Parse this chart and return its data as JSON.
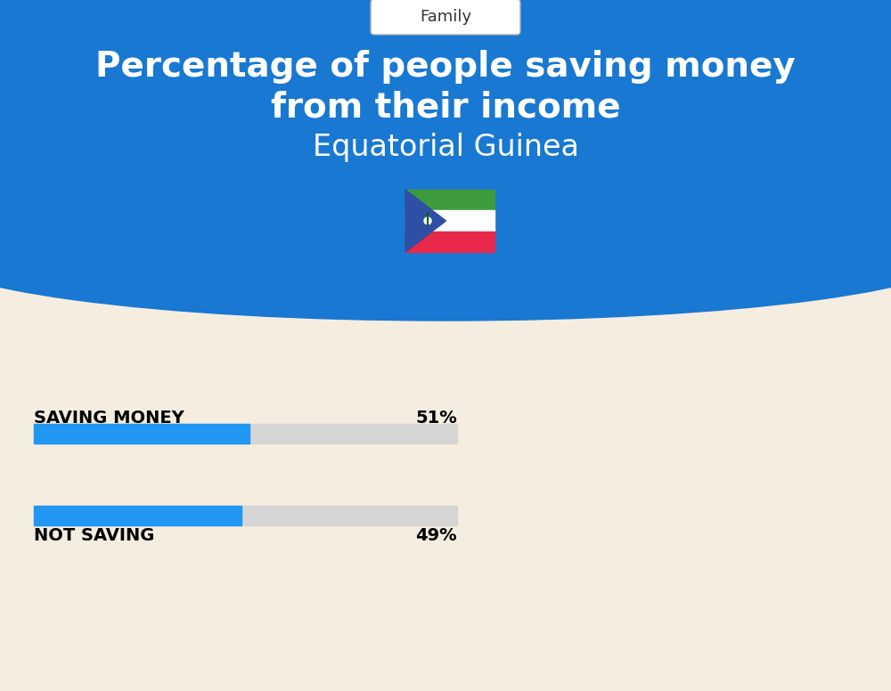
{
  "title_line1": "Percentage of people saving money",
  "title_line2": "from their income",
  "subtitle": "Equatorial Guinea",
  "category_label": "Family",
  "bar1_label": "SAVING MONEY",
  "bar1_value": 51,
  "bar1_pct": "51%",
  "bar2_label": "NOT SAVING",
  "bar2_value": 49,
  "bar2_pct": "49%",
  "blue_color": "#1878D2",
  "bar_blue": "#2196F3",
  "bar_gray": "#D5D5D5",
  "bg_color": "#F5EDE0",
  "white": "#FFFFFF",
  "black": "#000000",
  "flag_green": "#3D9B3D",
  "flag_white": "#FFFFFF",
  "flag_red": "#E8294A",
  "flag_blue": "#2E4FA3"
}
